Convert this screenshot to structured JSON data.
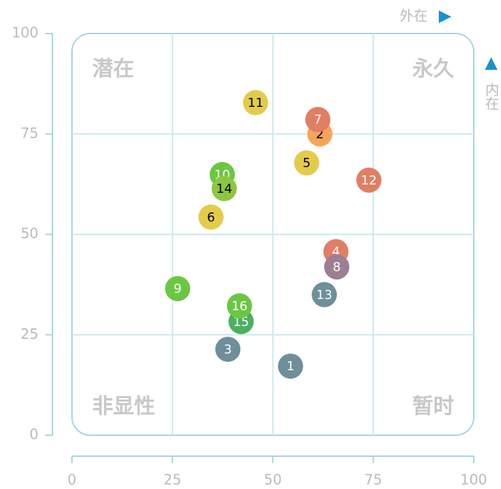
{
  "chart_data": {
    "type": "scatter",
    "labels": [
      "1",
      "2",
      "3",
      "4",
      "5",
      "6",
      "7",
      "8",
      "9",
      "10",
      "11",
      "12",
      "13",
      "14",
      "15",
      "16"
    ],
    "x": [
      54.4,
      61.7,
      38.8,
      65.7,
      58.4,
      34.6,
      61.2,
      65.9,
      26.3,
      37.4,
      45.7,
      73.9,
      62.8,
      37.9,
      42.1,
      41.7
    ],
    "y": [
      17.2,
      75.0,
      21.4,
      45.7,
      67.8,
      54.3,
      78.6,
      41.9,
      36.5,
      64.9,
      82.8,
      63.5,
      35.0,
      61.4,
      28.3,
      32.2
    ],
    "colors": [
      "#6e8f9a",
      "#f5a55a",
      "#6e8f9a",
      "#e07f65",
      "#e3cc4c",
      "#e3cc4c",
      "#e07f65",
      "#9d7f93",
      "#6cc644",
      "#6cc644",
      "#e3cc4c",
      "#e07f65",
      "#6e8f9a",
      "#8dc63f",
      "#4caf60",
      "#6cc644"
    ],
    "xlim": [
      0,
      100
    ],
    "ylim": [
      0,
      100
    ],
    "xticks": [
      0,
      25,
      50,
      75,
      100
    ],
    "yticks": [
      0,
      25,
      50,
      75,
      100
    ],
    "grid": true,
    "x_label": "外在",
    "y_label": "内在",
    "annotations": {
      "top_left": "潜在",
      "top_right": "永久",
      "bottom_left": "非显性",
      "bottom_right": "暂时"
    }
  }
}
